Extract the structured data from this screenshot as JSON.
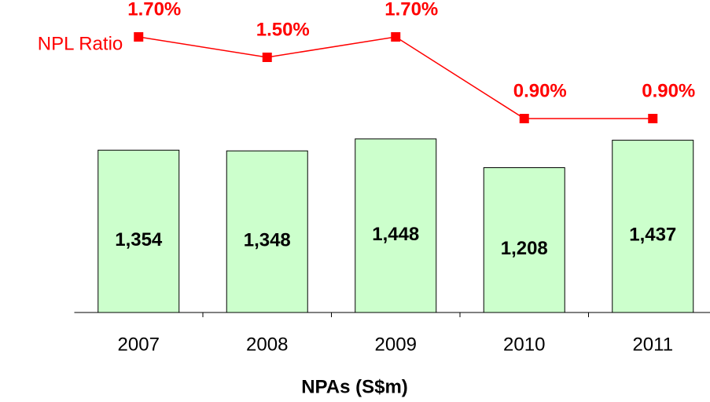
{
  "chart_data": {
    "type": "bar",
    "x_label": "NPAs (S$m)",
    "categories": [
      "2007",
      "2008",
      "2009",
      "2010",
      "2011"
    ],
    "series": [
      {
        "type": "bar",
        "color": "#ccffcc",
        "values": [
          1354,
          1348,
          1448,
          1208,
          1437
        ],
        "value_labels": [
          "1,354",
          "1,348",
          "1,448",
          "1,208",
          "1,437"
        ]
      },
      {
        "type": "line",
        "name": "NPL Ratio",
        "axis": "y2",
        "color": "#ff0000",
        "values": [
          1.7,
          1.5,
          1.7,
          0.9,
          0.9
        ],
        "value_labels": [
          "1.70%",
          "1.50%",
          "1.70%",
          "0.90%",
          "0.90%"
        ]
      }
    ],
    "ylim": [
      0,
      2600
    ],
    "y2lim": [
      0,
      2
    ]
  }
}
